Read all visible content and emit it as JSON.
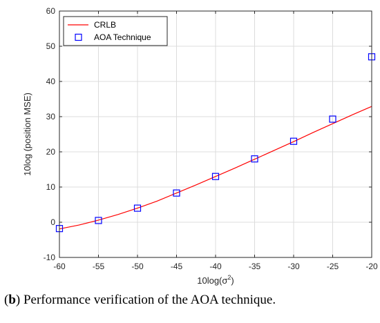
{
  "caption": {
    "label": "b",
    "text": "Performance verification of the AOA technique."
  },
  "chart_data": {
    "type": "line",
    "xlabel": "10log(σ",
    "xlabel_sup": "2",
    "xlabel_close": ")",
    "ylabel": "10log (position MSE)",
    "xlim": [
      -60,
      -20
    ],
    "ylim": [
      -10,
      60
    ],
    "xticks": [
      -60,
      -55,
      -50,
      -45,
      -40,
      -35,
      -30,
      -25,
      -20
    ],
    "yticks": [
      -10,
      0,
      10,
      20,
      30,
      40,
      50,
      60
    ],
    "grid": true,
    "legend_position": "top-left",
    "series": [
      {
        "name": "CRLB",
        "style": "line",
        "color": "#ff0000",
        "x": [
          -60,
          -57.5,
          -55,
          -52.5,
          -50,
          -47.5,
          -45,
          -42.5,
          -40,
          -37.5,
          -35,
          -32.5,
          -30,
          -27.5,
          -25,
          -22.5,
          -20
        ],
        "y": [
          -1.9,
          -0.8,
          0.6,
          2.2,
          4.0,
          6.0,
          8.3,
          10.6,
          13.0,
          15.4,
          17.9,
          20.4,
          22.9,
          25.5,
          28.0,
          30.5,
          32.9
        ]
      },
      {
        "name": "AOA Technique",
        "style": "marker",
        "color": "#0000ff",
        "x": [
          -60,
          -55,
          -50,
          -45,
          -40,
          -35,
          -30,
          -25,
          -20
        ],
        "y": [
          -1.8,
          0.5,
          4.0,
          8.3,
          13.0,
          18.0,
          23.0,
          29.3,
          47.0
        ]
      }
    ]
  }
}
